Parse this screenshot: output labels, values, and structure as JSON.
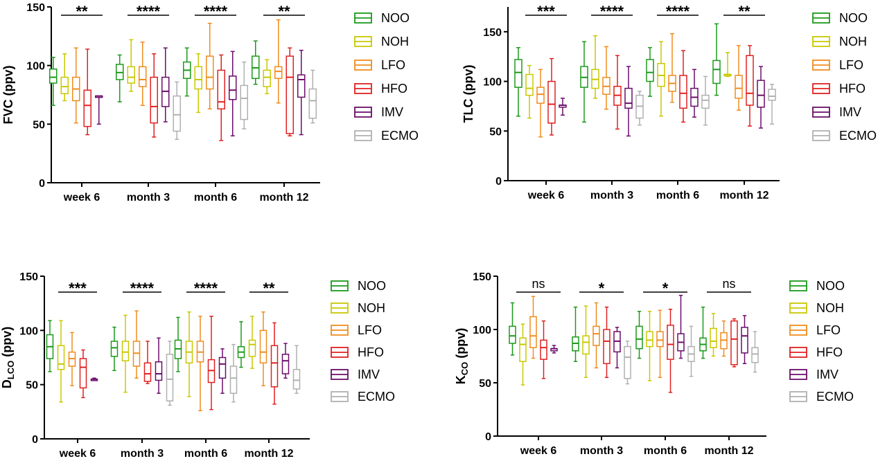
{
  "colors": {
    "NOO": "#1a9a1a",
    "NOH": "#c8c800",
    "LFO": "#f08c1e",
    "HFO": "#e02020",
    "IMV": "#6a0d6a",
    "ECMO": "#b0b0b0"
  },
  "chart_data": [
    {
      "type": "box",
      "ylabel": "FVC (ppv)",
      "ylim": [
        0,
        150
      ],
      "yticks": [
        0,
        50,
        100,
        150
      ],
      "categories": [
        "week 6",
        "month 3",
        "month 6",
        "month 12"
      ],
      "significance": [
        "**",
        "****",
        "****",
        "**"
      ],
      "legend": [
        "NOO",
        "NOH",
        "LFO",
        "HFO",
        "IMV",
        "ECMO"
      ],
      "series": [
        {
          "name": "NOO",
          "boxes": [
            [
              66,
              85,
              90,
              97,
              107
            ],
            [
              69,
              88,
              94,
              101,
              109
            ],
            [
              74,
              89,
              96,
              103,
              115
            ],
            [
              84,
              89,
              98,
              108,
              121
            ]
          ]
        },
        {
          "name": "NOH",
          "boxes": [
            [
              70,
              76,
              82,
              90,
              110
            ],
            [
              78,
              85,
              90,
              99,
              122
            ],
            [
              60,
              80,
              88,
              99,
              110
            ],
            [
              76,
              82,
              90,
              96,
              105
            ]
          ]
        },
        {
          "name": "LFO",
          "boxes": [
            [
              51,
              70,
              80,
              90,
              115
            ],
            [
              66,
              82,
              88,
              99,
              120
            ],
            [
              63,
              80,
              90,
              108,
              136
            ],
            [
              68,
              89,
              95,
              99,
              139
            ]
          ]
        },
        {
          "name": "HFO",
          "boxes": [
            [
              41,
              48,
              66,
              79,
              114
            ],
            [
              39,
              51,
              65,
              90,
              110
            ],
            [
              36,
              63,
              69,
              96,
              109
            ],
            [
              40,
              42,
              90,
              108,
              115
            ]
          ]
        },
        {
          "name": "IMV",
          "boxes": [
            [
              50,
              73,
              74,
              74,
              74
            ],
            [
              52,
              65,
              78,
              90,
              115
            ],
            [
              40,
              71,
              79,
              91,
              112
            ],
            [
              41,
              73,
              88,
              92,
              113
            ]
          ]
        },
        {
          "name": "ECMO",
          "boxes": [
            null,
            [
              37,
              44,
              58,
              74,
              86
            ],
            [
              46,
              54,
              72,
              83,
              103
            ],
            [
              51,
              55,
              70,
              80,
              96
            ]
          ]
        }
      ]
    },
    {
      "type": "box",
      "ylabel": "TLC (ppv)",
      "ylim": [
        0,
        175
      ],
      "yticks": [
        0,
        50,
        100,
        150
      ],
      "categories": [
        "week 6",
        "month 3",
        "month 6",
        "month 12"
      ],
      "significance": [
        "***",
        "****",
        "****",
        "**"
      ],
      "legend": [
        "NOO",
        "NOH",
        "LFO",
        "HFO",
        "IMV",
        "ECMO"
      ],
      "series": [
        {
          "name": "NOO",
          "boxes": [
            [
              65,
              94,
              109,
              122,
              134
            ],
            [
              59,
              94,
              104,
              115,
              140
            ],
            [
              85,
              100,
              109,
              122,
              134
            ],
            [
              86,
              98,
              112,
              121,
              158
            ]
          ]
        },
        {
          "name": "NOH",
          "boxes": [
            [
              63,
              86,
              93,
              107,
              116
            ],
            [
              83,
              93,
              102,
              112,
              146
            ],
            [
              65,
              95,
              106,
              118,
              140
            ],
            [
              105,
              106,
              107,
              107,
              129
            ]
          ]
        },
        {
          "name": "LFO",
          "boxes": [
            [
              44,
              78,
              87,
              94,
              112
            ],
            [
              72,
              87,
              95,
              104,
              135
            ],
            [
              79,
              90,
              98,
              106,
              148
            ],
            [
              71,
              83,
              93,
              106,
              136
            ]
          ]
        },
        {
          "name": "HFO",
          "boxes": [
            [
              46,
              58,
              77,
              100,
              123
            ],
            [
              52,
              76,
              86,
              95,
              126
            ],
            [
              59,
              73,
              88,
              106,
              131
            ],
            [
              55,
              76,
              88,
              126,
              136
            ]
          ]
        },
        {
          "name": "IMV",
          "boxes": [
            [
              66,
              74,
              76,
              76,
              83
            ],
            [
              45,
              73,
              78,
              93,
              115
            ],
            [
              64,
              75,
              84,
              93,
              112
            ],
            [
              53,
              74,
              86,
              101,
              115
            ]
          ]
        },
        {
          "name": "ECMO",
          "boxes": [
            null,
            [
              56,
              63,
              75,
              86,
              90
            ],
            [
              56,
              73,
              81,
              86,
              105
            ],
            [
              57,
              81,
              85,
              92,
              97
            ]
          ]
        }
      ]
    },
    {
      "type": "box",
      "ylabel": "DLCO (ppv)",
      "ylabel_main": "D",
      "ylabel_sub": "LCO",
      "ylabel_rest": " (ppv)",
      "ylim": [
        0,
        150
      ],
      "yticks": [
        0,
        50,
        100,
        150
      ],
      "categories": [
        "week 6",
        "month 3",
        "month 6",
        "month 12"
      ],
      "significance": [
        "***",
        "****",
        "****",
        "**"
      ],
      "legend": [
        "NOO",
        "NOH",
        "LFO",
        "HFO",
        "IMV",
        "ECMO"
      ],
      "series": [
        {
          "name": "NOO",
          "boxes": [
            [
              62,
              74,
              85,
              96,
              109
            ],
            [
              63,
              76,
              84,
              90,
              103
            ],
            [
              62,
              74,
              83,
              91,
              112
            ],
            [
              66,
              75,
              80,
              85,
              108
            ]
          ]
        },
        {
          "name": "NOH",
          "boxes": [
            [
              34,
              64,
              69,
              86,
              109
            ],
            [
              43,
              72,
              80,
              90,
              114
            ],
            [
              39,
              70,
              80,
              90,
              117
            ],
            [
              65,
              76,
              87,
              91,
              113
            ]
          ]
        },
        {
          "name": "LFO",
          "boxes": [
            [
              49,
              67,
              74,
              80,
              98
            ],
            [
              56,
              67,
              79,
              90,
              118
            ],
            [
              26,
              71,
              80,
              90,
              113
            ],
            [
              49,
              70,
              80,
              100,
              117
            ]
          ]
        },
        {
          "name": "HFO",
          "boxes": [
            [
              38,
              47,
              66,
              74,
              82
            ],
            [
              51,
              53,
              60,
              70,
              90
            ],
            [
              27,
              52,
              63,
              73,
              113
            ],
            [
              32,
              48,
              70,
              86,
              107
            ]
          ]
        },
        {
          "name": "IMV",
          "boxes": [
            [
              54,
              54,
              55,
              55,
              56
            ],
            [
              42,
              54,
              60,
              71,
              93
            ],
            [
              42,
              56,
              69,
              75,
              83
            ],
            [
              56,
              60,
              72,
              78,
              88
            ]
          ]
        },
        {
          "name": "ECMO",
          "boxes": [
            null,
            [
              31,
              35,
              55,
              78,
              90
            ],
            [
              34,
              42,
              56,
              67,
              87
            ],
            [
              42,
              46,
              54,
              64,
              86
            ]
          ]
        }
      ]
    },
    {
      "type": "box",
      "ylabel": "KCO (ppv)",
      "ylabel_main": "K",
      "ylabel_sub": "CO",
      "ylabel_rest": " (ppv)",
      "ylim": [
        0,
        150
      ],
      "yticks": [
        0,
        50,
        100,
        150
      ],
      "categories": [
        "week 6",
        "month 3",
        "month 6",
        "month 12"
      ],
      "significance": [
        "ns",
        "*",
        "*",
        "ns"
      ],
      "legend": [
        "NOO",
        "NOH",
        "LFO",
        "HFO",
        "IMV",
        "ECMO"
      ],
      "series": [
        {
          "name": "NOO",
          "boxes": [
            [
              76,
              87,
              94,
              103,
              125
            ],
            [
              70,
              80,
              87,
              93,
              121
            ],
            [
              73,
              82,
              91,
              103,
              117
            ],
            [
              73,
              80,
              86,
              92,
              121
            ]
          ]
        },
        {
          "name": "NOH",
          "boxes": [
            [
              48,
              70,
              86,
              92,
              105
            ],
            [
              55,
              77,
              88,
              94,
              122
            ],
            [
              52,
              84,
              90,
              98,
              117
            ],
            [
              75,
              83,
              89,
              101,
              115
            ]
          ]
        },
        {
          "name": "LFO",
          "boxes": [
            [
              73,
              83,
              94,
              112,
              131
            ],
            [
              64,
              85,
              96,
              103,
              125
            ],
            [
              55,
              84,
              90,
              98,
              118
            ],
            [
              75,
              82,
              90,
              97,
              108
            ]
          ]
        },
        {
          "name": "HFO",
          "boxes": [
            [
              54,
              72,
              83,
              90,
              108
            ],
            [
              55,
              68,
              89,
              100,
              121
            ],
            [
              41,
              72,
              86,
              104,
              119
            ],
            [
              65,
              67,
              91,
              108,
              110
            ]
          ]
        },
        {
          "name": "IMV",
          "boxes": [
            [
              78,
              80,
              82,
              82,
              85
            ],
            [
              64,
              79,
              89,
              98,
              102
            ],
            [
              73,
              80,
              88,
              96,
              132
            ],
            [
              68,
              78,
              94,
              102,
              113
            ]
          ]
        },
        {
          "name": "ECMO",
          "boxes": [
            null,
            [
              49,
              54,
              74,
              84,
              89
            ],
            [
              56,
              70,
              77,
              84,
              103
            ],
            [
              60,
              69,
              77,
              83,
              98
            ]
          ]
        }
      ]
    }
  ]
}
